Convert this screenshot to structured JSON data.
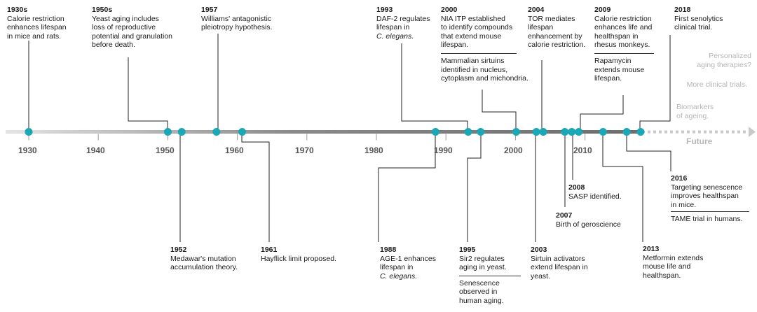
{
  "axis": {
    "ticks": [
      "1930",
      "1940",
      "1950",
      "1960",
      "1970",
      "1980",
      "1990",
      "2000",
      "2010"
    ],
    "future_label": "Future"
  },
  "colors": {
    "dot": "#1aa7b6",
    "line": "#7d7d7d",
    "future": "#c9c9c9",
    "text": "#1a1a1a"
  },
  "events": {
    "e1930s": {
      "year": "1930s",
      "text": "Calorie restriction\nenhances lifespan\nin mice and rats."
    },
    "e1950s": {
      "year": "1950s",
      "text": "Yeast aging includes\nloss of reproductive\npotential and granulation\nbefore death."
    },
    "e1957": {
      "year": "1957",
      "text": "Williams' antagonistic\npleiotropy hypothesis."
    },
    "e1993": {
      "year": "1993",
      "text": "DAF-2 regulates\nlifespan in",
      "text_italic": "C. elegans."
    },
    "e2000": {
      "year": "2000",
      "text": "NIA ITP established\nto identify compounds\nthat extend mouse\nlifespan.",
      "text2": "Mammalian sirtuins\nidentified in nucleus,\ncytoplasm and michondria."
    },
    "e2004": {
      "year": "2004",
      "text": "TOR mediates\nlifespan\nenhancement by\ncalorie restriction."
    },
    "e2009": {
      "year": "2009",
      "text": "Calorie restriction\nenhances life and\nhealthspan in\nrhesus monkeys.",
      "text2": "Rapamycin\nextends mouse\nlifespan."
    },
    "e2018": {
      "year": "2018",
      "text": "First senolytics\nclinical trial."
    },
    "e1952": {
      "year": "1952",
      "text": "Medawar's mutation\naccumulation theory."
    },
    "e1961": {
      "year": "1961",
      "text": "Hayflick limit proposed."
    },
    "e1988": {
      "year": "1988",
      "text": "AGE-1 enhances\nlifespan in",
      "text_italic": "C. elegans."
    },
    "e1995": {
      "year": "1995",
      "text": "Sir2 regulates\naging in yeast.",
      "text2": "Senescence\nobserved in\nhuman aging."
    },
    "e2003": {
      "year": "2003",
      "text": "Sirtuin activators\nextend lifespan in\nyeast."
    },
    "e2007": {
      "year": "2007",
      "text": "Birth of geroscience"
    },
    "e2008": {
      "year": "2008",
      "text": "SASP identified."
    },
    "e2013": {
      "year": "2013",
      "text": "Metformin extends\nmouse life and\nhealthspan."
    },
    "e2016": {
      "year": "2016",
      "text": "Targeting senescence\nimproves healthspan\nin mice.",
      "text2": "TAME trial in humans."
    }
  },
  "future": {
    "f1": "Personalized\naging therapies?",
    "f2": "More clinical trials.",
    "f3": "Biomarkers\nof ageing."
  },
  "dot_years": [
    1930,
    1950,
    1952,
    1957,
    1960.7,
    1988.5,
    1993.2,
    1995,
    2000.1,
    2003,
    2004,
    2007.1,
    2008.1,
    2009.1,
    2012.6,
    2016,
    2018
  ]
}
